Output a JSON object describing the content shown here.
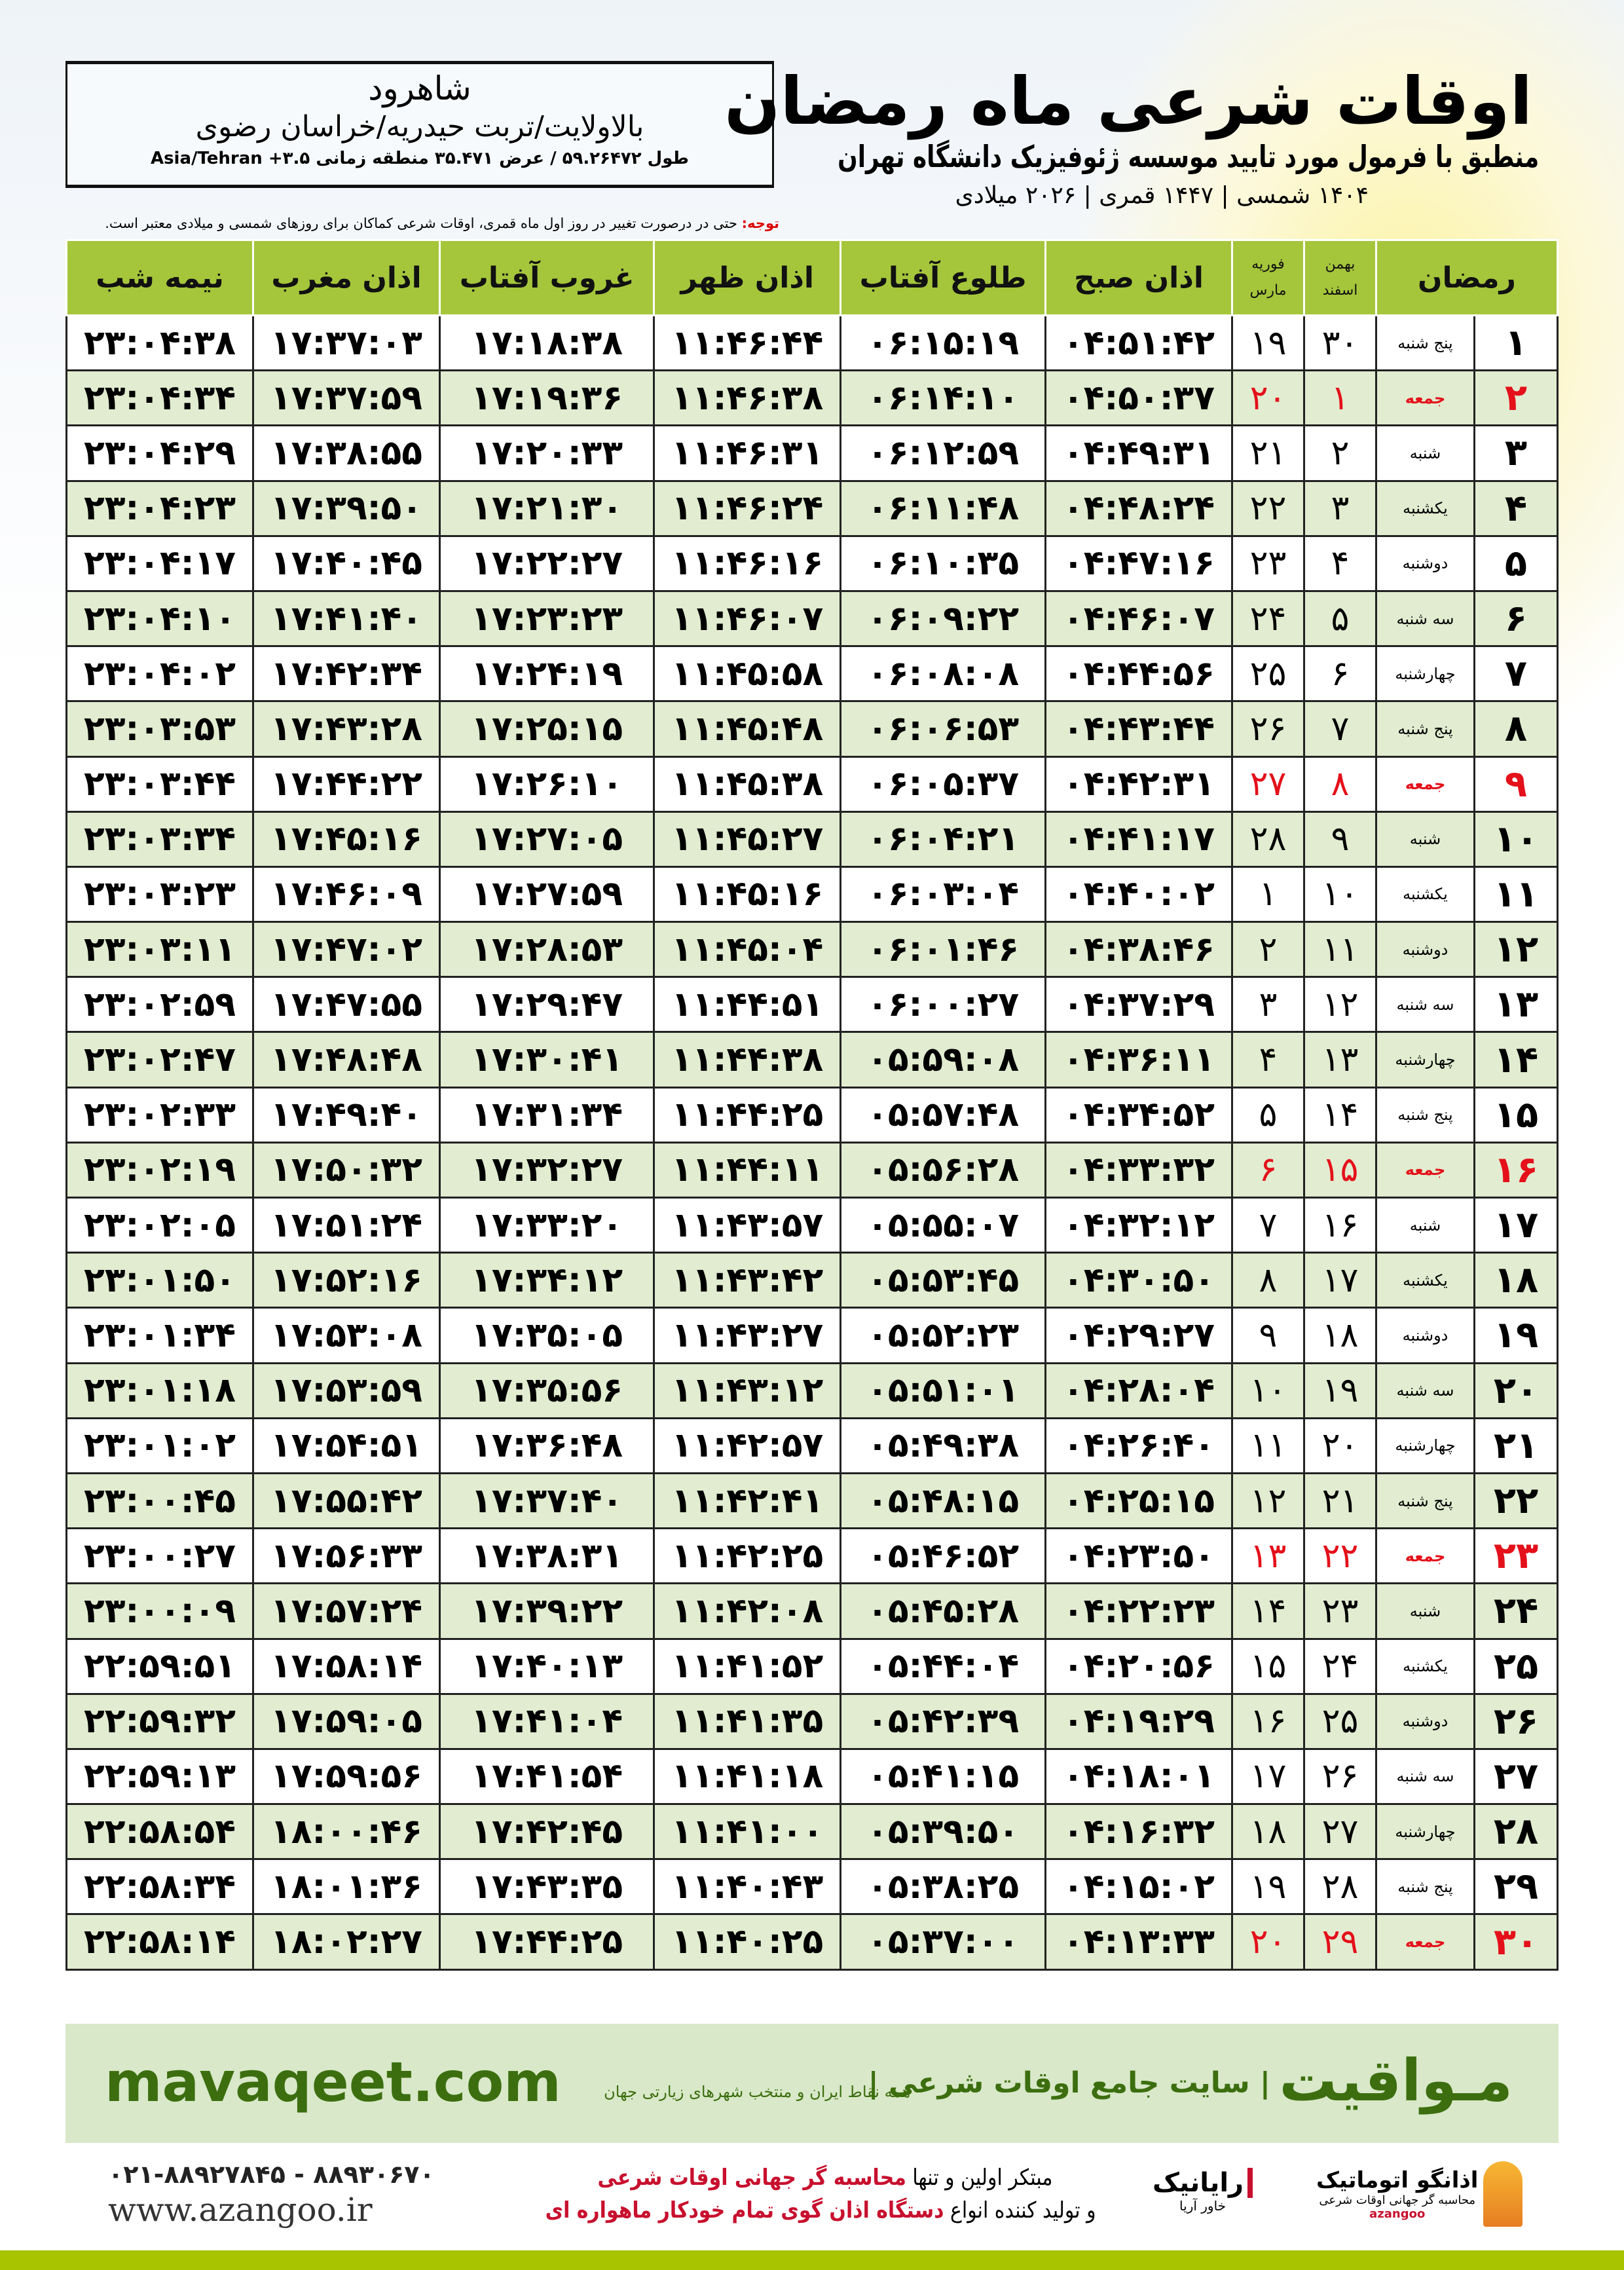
{
  "title": "اوقات شرعی ماه رمضان",
  "subtitle": "منطبق با فرمول مورد تایید موسسه ژئوفیزیک دانشگاه تهران",
  "years": "۱۴۰۴ شمسی | ۱۴۴۷ قمری | ۲۰۲۶ میلادی",
  "location": {
    "city": "شاهرود",
    "region": "بالاولایت/تربت حیدریه/خراسان رضوی",
    "coords": "طول ۵۹.۲۶۴۷۲ / عرض ۳۵.۴۷۱ منطقه زمانی ۳.۵+ Asia/Tehran"
  },
  "note": {
    "label": "توجه:",
    "text": " حتی در درصورت تغییر در روز اول ماه قمری، اوقات شرعی کماکان برای روزهای شمسی و میلادی معتبر است."
  },
  "headers": {
    "ramadan": "رمضان",
    "bahman": "بهمن",
    "esfand": "اسفند",
    "feb": "فوریه",
    "mar": "مارس",
    "fajr": "اذان صبح",
    "sunrise": "طلوع آفتاب",
    "dhuhr": "اذان ظهر",
    "sunset": "غروب آفتاب",
    "maghrib": "اذان مغرب",
    "midnight": "نیمه شب"
  },
  "rows": [
    [
      "۱",
      "پنج شنبه",
      "۳۰",
      "۱۹",
      "۰۴:۵۱:۴۲",
      "۰۶:۱۵:۱۹",
      "۱۱:۴۶:۴۴",
      "۱۷:۱۸:۳۸",
      "۱۷:۳۷:۰۳",
      "۲۳:۰۴:۳۸"
    ],
    [
      "۲",
      "جمعه",
      "۱",
      "۲۰",
      "۰۴:۵۰:۳۷",
      "۰۶:۱۴:۱۰",
      "۱۱:۴۶:۳۸",
      "۱۷:۱۹:۳۶",
      "۱۷:۳۷:۵۹",
      "۲۳:۰۴:۳۴"
    ],
    [
      "۳",
      "شنبه",
      "۲",
      "۲۱",
      "۰۴:۴۹:۳۱",
      "۰۶:۱۲:۵۹",
      "۱۱:۴۶:۳۱",
      "۱۷:۲۰:۳۳",
      "۱۷:۳۸:۵۵",
      "۲۳:۰۴:۲۹"
    ],
    [
      "۴",
      "یکشنبه",
      "۳",
      "۲۲",
      "۰۴:۴۸:۲۴",
      "۰۶:۱۱:۴۸",
      "۱۱:۴۶:۲۴",
      "۱۷:۲۱:۳۰",
      "۱۷:۳۹:۵۰",
      "۲۳:۰۴:۲۳"
    ],
    [
      "۵",
      "دوشنبه",
      "۴",
      "۲۳",
      "۰۴:۴۷:۱۶",
      "۰۶:۱۰:۳۵",
      "۱۱:۴۶:۱۶",
      "۱۷:۲۲:۲۷",
      "۱۷:۴۰:۴۵",
      "۲۳:۰۴:۱۷"
    ],
    [
      "۶",
      "سه شنبه",
      "۵",
      "۲۴",
      "۰۴:۴۶:۰۷",
      "۰۶:۰۹:۲۲",
      "۱۱:۴۶:۰۷",
      "۱۷:۲۳:۲۳",
      "۱۷:۴۱:۴۰",
      "۲۳:۰۴:۱۰"
    ],
    [
      "۷",
      "چهارشنبه",
      "۶",
      "۲۵",
      "۰۴:۴۴:۵۶",
      "۰۶:۰۸:۰۸",
      "۱۱:۴۵:۵۸",
      "۱۷:۲۴:۱۹",
      "۱۷:۴۲:۳۴",
      "۲۳:۰۴:۰۲"
    ],
    [
      "۸",
      "پنج شنبه",
      "۷",
      "۲۶",
      "۰۴:۴۳:۴۴",
      "۰۶:۰۶:۵۳",
      "۱۱:۴۵:۴۸",
      "۱۷:۲۵:۱۵",
      "۱۷:۴۳:۲۸",
      "۲۳:۰۳:۵۳"
    ],
    [
      "۹",
      "جمعه",
      "۸",
      "۲۷",
      "۰۴:۴۲:۳۱",
      "۰۶:۰۵:۳۷",
      "۱۱:۴۵:۳۸",
      "۱۷:۲۶:۱۰",
      "۱۷:۴۴:۲۲",
      "۲۳:۰۳:۴۴"
    ],
    [
      "۱۰",
      "شنبه",
      "۹",
      "۲۸",
      "۰۴:۴۱:۱۷",
      "۰۶:۰۴:۲۱",
      "۱۱:۴۵:۲۷",
      "۱۷:۲۷:۰۵",
      "۱۷:۴۵:۱۶",
      "۲۳:۰۳:۳۴"
    ],
    [
      "۱۱",
      "یکشنبه",
      "۱۰",
      "۱",
      "۰۴:۴۰:۰۲",
      "۰۶:۰۳:۰۴",
      "۱۱:۴۵:۱۶",
      "۱۷:۲۷:۵۹",
      "۱۷:۴۶:۰۹",
      "۲۳:۰۳:۲۳"
    ],
    [
      "۱۲",
      "دوشنبه",
      "۱۱",
      "۲",
      "۰۴:۳۸:۴۶",
      "۰۶:۰۱:۴۶",
      "۱۱:۴۵:۰۴",
      "۱۷:۲۸:۵۳",
      "۱۷:۴۷:۰۲",
      "۲۳:۰۳:۱۱"
    ],
    [
      "۱۳",
      "سه شنبه",
      "۱۲",
      "۳",
      "۰۴:۳۷:۲۹",
      "۰۶:۰۰:۲۷",
      "۱۱:۴۴:۵۱",
      "۱۷:۲۹:۴۷",
      "۱۷:۴۷:۵۵",
      "۲۳:۰۲:۵۹"
    ],
    [
      "۱۴",
      "چهارشنبه",
      "۱۳",
      "۴",
      "۰۴:۳۶:۱۱",
      "۰۵:۵۹:۰۸",
      "۱۱:۴۴:۳۸",
      "۱۷:۳۰:۴۱",
      "۱۷:۴۸:۴۸",
      "۲۳:۰۲:۴۷"
    ],
    [
      "۱۵",
      "پنج شنبه",
      "۱۴",
      "۵",
      "۰۴:۳۴:۵۲",
      "۰۵:۵۷:۴۸",
      "۱۱:۴۴:۲۵",
      "۱۷:۳۱:۳۴",
      "۱۷:۴۹:۴۰",
      "۲۳:۰۲:۳۳"
    ],
    [
      "۱۶",
      "جمعه",
      "۱۵",
      "۶",
      "۰۴:۳۳:۳۲",
      "۰۵:۵۶:۲۸",
      "۱۱:۴۴:۱۱",
      "۱۷:۳۲:۲۷",
      "۱۷:۵۰:۳۲",
      "۲۳:۰۲:۱۹"
    ],
    [
      "۱۷",
      "شنبه",
      "۱۶",
      "۷",
      "۰۴:۳۲:۱۲",
      "۰۵:۵۵:۰۷",
      "۱۱:۴۳:۵۷",
      "۱۷:۳۳:۲۰",
      "۱۷:۵۱:۲۴",
      "۲۳:۰۲:۰۵"
    ],
    [
      "۱۸",
      "یکشنبه",
      "۱۷",
      "۸",
      "۰۴:۳۰:۵۰",
      "۰۵:۵۳:۴۵",
      "۱۱:۴۳:۴۲",
      "۱۷:۳۴:۱۲",
      "۱۷:۵۲:۱۶",
      "۲۳:۰۱:۵۰"
    ],
    [
      "۱۹",
      "دوشنبه",
      "۱۸",
      "۹",
      "۰۴:۲۹:۲۷",
      "۰۵:۵۲:۲۳",
      "۱۱:۴۳:۲۷",
      "۱۷:۳۵:۰۵",
      "۱۷:۵۳:۰۸",
      "۲۳:۰۱:۳۴"
    ],
    [
      "۲۰",
      "سه شنبه",
      "۱۹",
      "۱۰",
      "۰۴:۲۸:۰۴",
      "۰۵:۵۱:۰۱",
      "۱۱:۴۳:۱۲",
      "۱۷:۳۵:۵۶",
      "۱۷:۵۳:۵۹",
      "۲۳:۰۱:۱۸"
    ],
    [
      "۲۱",
      "چهارشنبه",
      "۲۰",
      "۱۱",
      "۰۴:۲۶:۴۰",
      "۰۵:۴۹:۳۸",
      "۱۱:۴۲:۵۷",
      "۱۷:۳۶:۴۸",
      "۱۷:۵۴:۵۱",
      "۲۳:۰۱:۰۲"
    ],
    [
      "۲۲",
      "پنج شنبه",
      "۲۱",
      "۱۲",
      "۰۴:۲۵:۱۵",
      "۰۵:۴۸:۱۵",
      "۱۱:۴۲:۴۱",
      "۱۷:۳۷:۴۰",
      "۱۷:۵۵:۴۲",
      "۲۳:۰۰:۴۵"
    ],
    [
      "۲۳",
      "جمعه",
      "۲۲",
      "۱۳",
      "۰۴:۲۳:۵۰",
      "۰۵:۴۶:۵۲",
      "۱۱:۴۲:۲۵",
      "۱۷:۳۸:۳۱",
      "۱۷:۵۶:۳۳",
      "۲۳:۰۰:۲۷"
    ],
    [
      "۲۴",
      "شنبه",
      "۲۳",
      "۱۴",
      "۰۴:۲۲:۲۳",
      "۰۵:۴۵:۲۸",
      "۱۱:۴۲:۰۸",
      "۱۷:۳۹:۲۲",
      "۱۷:۵۷:۲۴",
      "۲۳:۰۰:۰۹"
    ],
    [
      "۲۵",
      "یکشنبه",
      "۲۴",
      "۱۵",
      "۰۴:۲۰:۵۶",
      "۰۵:۴۴:۰۴",
      "۱۱:۴۱:۵۲",
      "۱۷:۴۰:۱۳",
      "۱۷:۵۸:۱۴",
      "۲۲:۵۹:۵۱"
    ],
    [
      "۲۶",
      "دوشنبه",
      "۲۵",
      "۱۶",
      "۰۴:۱۹:۲۹",
      "۰۵:۴۲:۳۹",
      "۱۱:۴۱:۳۵",
      "۱۷:۴۱:۰۴",
      "۱۷:۵۹:۰۵",
      "۲۲:۵۹:۳۲"
    ],
    [
      "۲۷",
      "سه شنبه",
      "۲۶",
      "۱۷",
      "۰۴:۱۸:۰۱",
      "۰۵:۴۱:۱۵",
      "۱۱:۴۱:۱۸",
      "۱۷:۴۱:۵۴",
      "۱۷:۵۹:۵۶",
      "۲۲:۵۹:۱۳"
    ],
    [
      "۲۸",
      "چهارشنبه",
      "۲۷",
      "۱۸",
      "۰۴:۱۶:۳۲",
      "۰۵:۳۹:۵۰",
      "۱۱:۴۱:۰۰",
      "۱۷:۴۲:۴۵",
      "۱۸:۰۰:۴۶",
      "۲۲:۵۸:۵۴"
    ],
    [
      "۲۹",
      "پنج شنبه",
      "۲۸",
      "۱۹",
      "۰۴:۱۵:۰۲",
      "۰۵:۳۸:۲۵",
      "۱۱:۴۰:۴۳",
      "۱۷:۴۳:۳۵",
      "۱۸:۰۱:۳۶",
      "۲۲:۵۸:۳۴"
    ],
    [
      "۳۰",
      "جمعه",
      "۲۹",
      "۲۰",
      "۰۴:۱۳:۳۳",
      "۰۵:۳۷:۰۰",
      "۱۱:۴۰:۲۵",
      "۱۷:۴۴:۲۵",
      "۱۸:۰۲:۲۷",
      "۲۲:۵۸:۱۴"
    ]
  ],
  "holiday_day": "جمعه",
  "colors": {
    "header": "#a5c63b",
    "alt_row": "#e1ecd0",
    "holiday": "#e4101a",
    "brand_green": "#3c6e0f"
  },
  "banner": {
    "site": "mavaqeet.com",
    "brand": "مـواقیت",
    "brand_sub": "| سایت جامع اوقات شرعی |",
    "tagline": "همه نقاط ایران و منتخب شهرهای زیارتی جهان"
  },
  "footer": {
    "phones": "۰۲۱-۸۸۹۲۷۸۴۵ - ۸۸۹۳۰۶۷۰",
    "website": "www.azangoo.ir",
    "promo_line1_a": "مبتکر اولین و تنها ",
    "promo_line1_b": "محاسبه گر جهانی اوقات شرعی",
    "promo_line2_a": "و تولید کننده انواع ",
    "promo_line2_b": "دستگاه اذان گوی تمام خودکار ماهواره ای",
    "logo1": "رایانیک",
    "logo1_sub": "خاور آریا",
    "logo2": "اذانگو اتوماتیک",
    "logo2_sub": "محاسبه گر جهانی اوقات شرعی",
    "logo2_en": "azangoo"
  }
}
